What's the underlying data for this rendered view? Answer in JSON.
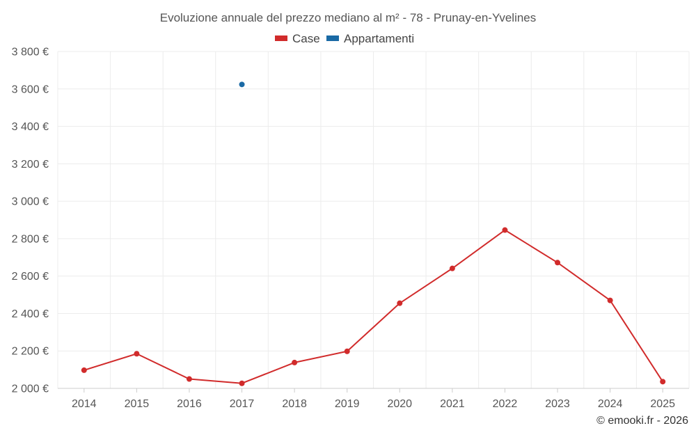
{
  "chart_data": {
    "type": "line",
    "title": "Evoluzione annuale del prezzo mediano al m² - 78 - Prunay-en-Yvelines",
    "categories": [
      "2014",
      "2015",
      "2016",
      "2017",
      "2018",
      "2019",
      "2020",
      "2021",
      "2022",
      "2023",
      "2024",
      "2025"
    ],
    "series": [
      {
        "name": "Case",
        "color": "#d12b2b",
        "values": [
          2097,
          2185,
          2050,
          2027,
          2138,
          2198,
          2455,
          2641,
          2846,
          2672,
          2470,
          2036
        ]
      },
      {
        "name": "Appartamenti",
        "color": "#1a6aa5",
        "values": [
          null,
          null,
          null,
          3624,
          null,
          null,
          null,
          null,
          null,
          null,
          null,
          null
        ]
      }
    ],
    "ylim": [
      2000,
      3800
    ],
    "yticks": [
      2000,
      2200,
      2400,
      2600,
      2800,
      3000,
      3200,
      3400,
      3600,
      3800
    ],
    "ytick_labels": [
      "2 000 €",
      "2 200 €",
      "2 400 €",
      "2 600 €",
      "2 800 €",
      "3 000 €",
      "3 200 €",
      "3 400 €",
      "3 600 €",
      "3 800 €"
    ],
    "xlabel": "",
    "ylabel": "",
    "grid": true,
    "legend_position": "top-center"
  },
  "credit": "© emooki.fr - 2026"
}
